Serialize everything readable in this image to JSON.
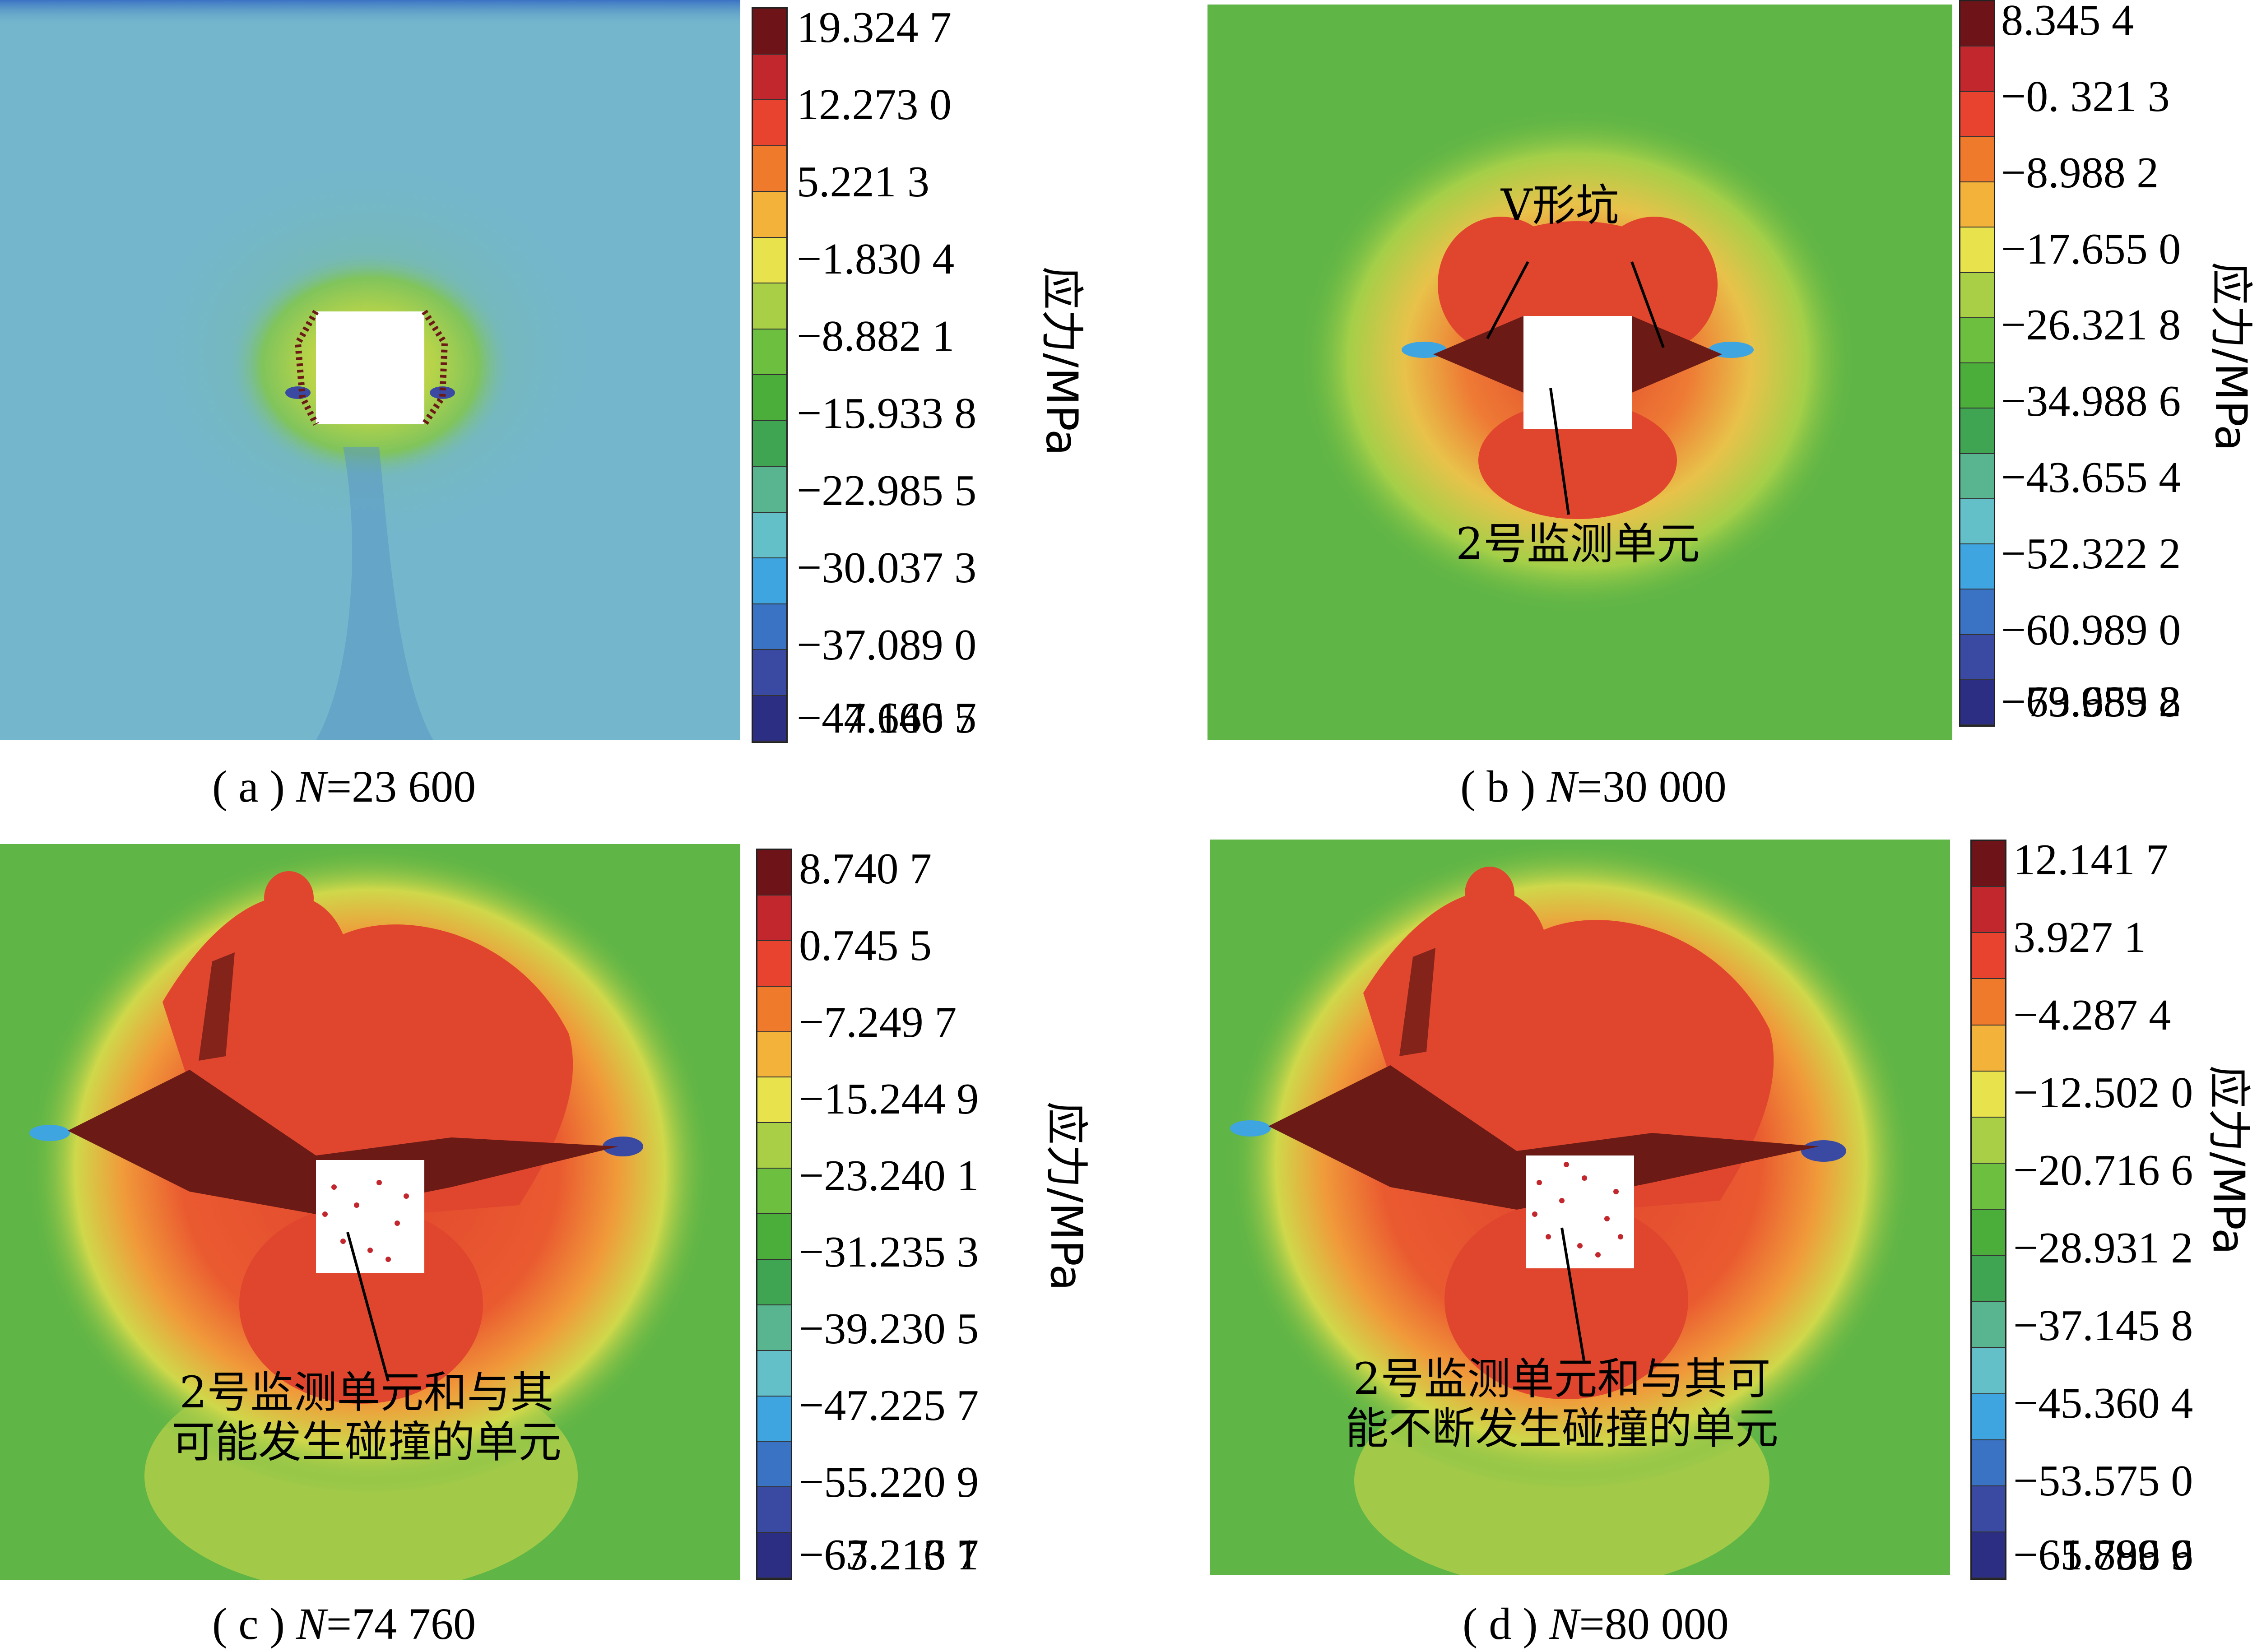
{
  "panels": [
    {
      "id": "a",
      "caption_prefix": "( a ) ",
      "caption_var": "N",
      "caption_value": "=23 600",
      "unit_label": "应力/MPa",
      "ticks": [
        "19.324 7",
        "12.273 0",
        "5.221 3",
        "-1.830 4",
        "-8.882 1",
        "-15.933 8",
        "-22.985 5",
        "-30.037 3",
        "-37.089 0",
        "-44.140 7",
        "-47.666 5"
      ],
      "annotations": []
    },
    {
      "id": "b",
      "caption_prefix": "( b ) ",
      "caption_var": "N",
      "caption_value": "=30 000",
      "unit_label": "应力/MPa",
      "ticks": [
        "8.345 4",
        "-0. 321 3",
        "-8.988 2",
        "-17.655 0",
        "-26.321 8",
        "-34.988 6",
        "-43.655 4",
        "-52.322 2",
        "-60.989 0",
        "-69.655 8",
        "-73.989 2"
      ],
      "annotations": [
        {
          "lines": [
            "V形坑"
          ]
        },
        {
          "lines": [
            "2号监测单元"
          ]
        }
      ]
    },
    {
      "id": "c",
      "caption_prefix": "( c ) ",
      "caption_var": "N",
      "caption_value": "=74 760",
      "unit_label": "应力/MPa",
      "ticks": [
        "8.740 7",
        "0.745 5",
        "-7.249 7",
        "-15.244 9",
        "-23.240 1",
        "-31.235 3",
        "-39.230 5",
        "-47.225 7",
        "-55.220 9",
        "-63.216 1",
        "-67.213 7"
      ],
      "annotations": [
        {
          "lines": [
            "2号监测单元和与其",
            "可能发生碰撞的单元"
          ]
        }
      ]
    },
    {
      "id": "d",
      "caption_prefix": "( d ) ",
      "caption_var": "N",
      "caption_value": "=80 000",
      "unit_label": "应力/MPa",
      "ticks": [
        "12.141 7",
        "3.927 1",
        "-4.287 4",
        "-12.502 0",
        "-20.716 6",
        "-28.931 2",
        "-37.145 8",
        "-45.360 4",
        "-53.575 0",
        "-61.789 6",
        "-65.896 9"
      ],
      "annotations": [
        {
          "lines": [
            "2号监测单元和与其可",
            "能不断发生碰撞的单元"
          ]
        }
      ]
    }
  ],
  "colors": {
    "colorbar_bands": [
      "#6e1418",
      "#c1272d",
      "#e8432e",
      "#f07a2c",
      "#f3b33a",
      "#e8e24c",
      "#a8cf45",
      "#6cbf3f",
      "#4cae3a",
      "#3fa552",
      "#58b58f",
      "#63c0c8",
      "#3fa5e0",
      "#3b73c4",
      "#3a4aa3",
      "#2b2e82"
    ],
    "field_blue": "#74b7cc",
    "field_green": "#5fb546",
    "hot_red": "#e0462e",
    "dark_cluster": "#6b1a15"
  }
}
